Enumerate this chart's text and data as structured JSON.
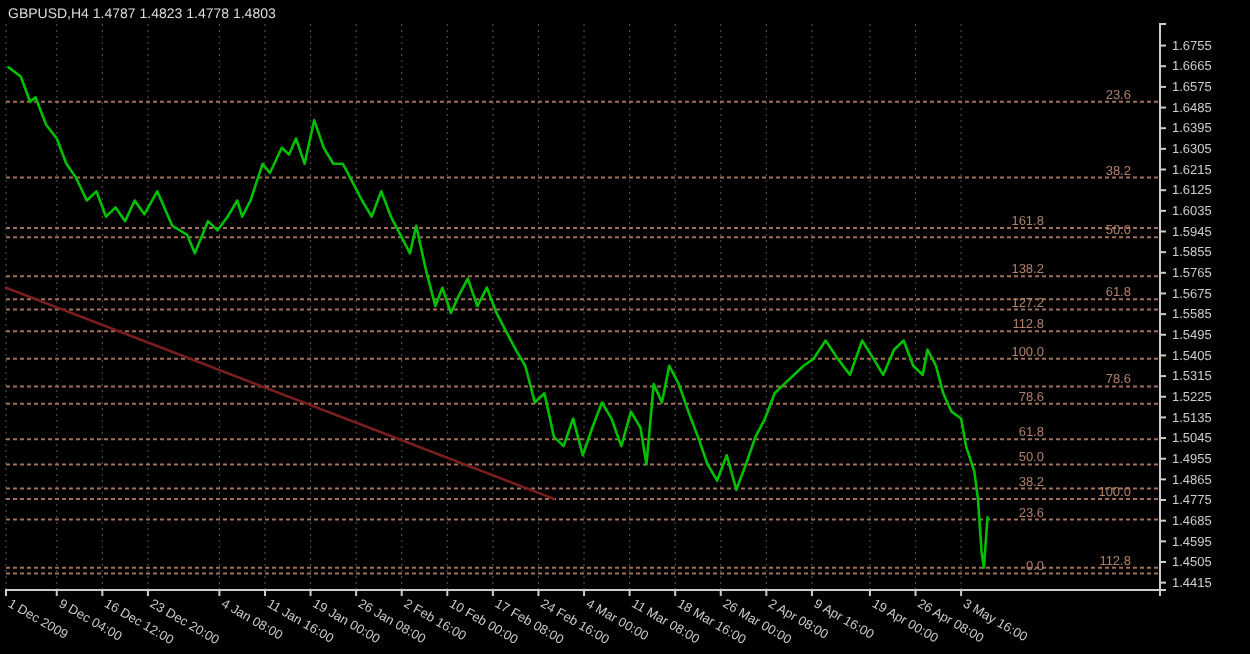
{
  "chart_data": {
    "type": "line",
    "title": "GBPUSD,H4  1.4787 1.4823 1.4778 1.4803",
    "xlim": [
      "2009-12-01T00:00",
      "2010-06-04T16:00"
    ],
    "xticks": [
      {
        "value": "2009-12-01T00:00",
        "label": "1 Dec 2009"
      },
      {
        "value": "2009-12-09T04:00",
        "label": "9 Dec 04:00"
      },
      {
        "value": "2009-12-16T12:00",
        "label": "16 Dec 12:00"
      },
      {
        "value": "2009-12-23T20:00",
        "label": "23 Dec 20:00"
      },
      {
        "value": "2010-01-04T08:00",
        "label": "4 Jan 08:00"
      },
      {
        "value": "2010-01-11T16:00",
        "label": "11 Jan 16:00"
      },
      {
        "value": "2010-01-19T00:00",
        "label": "19 Jan 00:00"
      },
      {
        "value": "2010-01-26T08:00",
        "label": "26 Jan 08:00"
      },
      {
        "value": "2010-02-02T16:00",
        "label": "2 Feb 16:00"
      },
      {
        "value": "2010-02-10T00:00",
        "label": "10 Feb 00:00"
      },
      {
        "value": "2010-02-17T08:00",
        "label": "17 Feb 08:00"
      },
      {
        "value": "2010-02-24T16:00",
        "label": "24 Feb 16:00"
      },
      {
        "value": "2010-03-04T00:00",
        "label": "4 Mar 00:00"
      },
      {
        "value": "2010-03-11T08:00",
        "label": "11 Mar 08:00"
      },
      {
        "value": "2010-03-18T16:00",
        "label": "18 Mar 16:00"
      },
      {
        "value": "2010-03-26T00:00",
        "label": "26 Mar 00:00"
      },
      {
        "value": "2010-04-02T08:00",
        "label": "2 Apr 08:00"
      },
      {
        "value": "2010-04-09T16:00",
        "label": "9 Apr 16:00"
      },
      {
        "value": "2010-04-19T00:00",
        "label": "19 Apr 00:00"
      },
      {
        "value": "2010-04-26T08:00",
        "label": "26 Apr 08:00"
      },
      {
        "value": "2010-05-03T16:00",
        "label": "3 May 16:00"
      }
    ],
    "ylim": [
      1.4383,
      1.6849
    ],
    "yticks": [
      1.6755,
      1.6665,
      1.6575,
      1.6485,
      1.6395,
      1.6305,
      1.6215,
      1.6125,
      1.6035,
      1.5945,
      1.5855,
      1.5765,
      1.5675,
      1.5585,
      1.5495,
      1.5405,
      1.5315,
      1.5225,
      1.5135,
      1.5045,
      1.4955,
      1.4865,
      1.4775,
      1.4685,
      1.4595,
      1.4505,
      1.4415
    ],
    "grid": "x",
    "series": [
      {
        "color": "#00c000",
        "x": [
          "2009-12-01T10:00",
          "2009-12-03T09:00",
          "2009-12-04T21:00",
          "2009-12-05T18:00",
          "2009-12-07T11:00",
          "2009-12-09T04:00",
          "2009-12-10T17:00",
          "2009-12-12T06:00",
          "2009-12-14T00:00",
          "2009-12-15T13:00",
          "2009-12-17T02:00",
          "2009-12-18T15:00",
          "2009-12-20T04:00",
          "2009-12-21T17:00",
          "2009-12-23T06:00",
          "2009-12-25T08:00",
          "2009-12-27T18:00",
          "2009-12-30T04:00",
          "2009-12-31T09:00",
          "2010-01-02T12:00",
          "2010-01-04T01:00",
          "2010-01-05T16:00",
          "2010-01-07T05:00",
          "2010-01-08T00:00",
          "2010-01-09T08:00",
          "2010-01-11T07:00",
          "2010-01-12T11:00",
          "2010-01-14T09:00",
          "2010-01-15T13:00",
          "2010-01-16T16:00",
          "2010-01-18T01:00",
          "2010-01-19T14:00",
          "2010-01-21T03:00",
          "2010-01-22T16:00",
          "2010-01-24T05:00",
          "2010-01-25T18:00",
          "2010-01-27T07:00",
          "2010-01-28T20:00",
          "2010-01-30T09:00",
          "2010-01-31T22:00",
          "2010-02-02T11:00",
          "2010-02-04T00:00",
          "2010-02-05T00:00",
          "2010-02-06T13:00",
          "2010-02-08T02:00",
          "2010-02-09T05:00",
          "2010-02-10T14:00",
          "2010-02-11T18:00",
          "2010-02-13T07:00",
          "2010-02-14T20:00",
          "2010-02-16T09:00",
          "2010-02-17T22:00",
          "2010-02-19T11:00",
          "2010-02-21T00:00",
          "2010-02-22T13:00",
          "2010-02-24T02:00",
          "2010-02-25T15:00",
          "2010-02-27T04:00",
          "2010-02-28T17:00",
          "2010-03-02T06:00",
          "2010-03-03T19:00",
          "2010-03-05T08:00",
          "2010-03-06T21:00",
          "2010-03-08T10:00",
          "2010-03-10T00:00",
          "2010-03-11T13:00",
          "2010-03-13T02:00",
          "2010-03-14T01:00",
          "2010-03-15T05:00",
          "2010-03-16T13:00",
          "2010-03-17T17:00",
          "2010-03-19T06:00",
          "2010-03-20T19:00",
          "2010-03-22T08:00",
          "2010-03-23T21:00",
          "2010-03-25T10:00",
          "2010-03-26T23:00",
          "2010-03-28T12:00",
          "2010-03-30T01:00",
          "2010-03-31T14:00",
          "2010-04-02T03:00",
          "2010-04-03T16:00",
          "2010-04-05T05:00",
          "2010-04-06T18:00",
          "2010-04-08T08:00",
          "2010-04-09T22:00",
          "2010-04-11T21:00",
          "2010-04-13T20:00",
          "2010-04-15T19:00",
          "2010-04-17T18:00",
          "2010-04-19T14:00",
          "2010-04-21T03:00",
          "2010-04-22T21:00",
          "2010-04-24T10:00",
          "2010-04-25T23:00",
          "2010-04-27T12:00",
          "2010-04-28T06:00",
          "2010-04-29T15:00",
          "2010-04-30T19:00",
          "2010-05-02T03:00",
          "2010-05-03T16:00",
          "2010-05-04T11:00",
          "2010-05-05T19:00",
          "2010-05-06T09:00",
          "2010-05-06T23:00",
          "2010-05-07T08:00",
          "2010-05-07T22:00"
        ],
        "values": [
          1.666,
          1.662,
          1.651,
          1.653,
          1.641,
          1.635,
          1.624,
          1.618,
          1.608,
          1.612,
          1.601,
          1.605,
          1.599,
          1.608,
          1.602,
          1.612,
          1.597,
          1.593,
          1.585,
          1.599,
          1.595,
          1.601,
          1.608,
          1.601,
          1.608,
          1.624,
          1.62,
          1.631,
          1.628,
          1.635,
          1.624,
          1.643,
          1.631,
          1.624,
          1.624,
          1.616,
          1.608,
          1.601,
          1.612,
          1.601,
          1.593,
          1.585,
          1.597,
          1.578,
          1.562,
          1.57,
          1.559,
          1.566,
          1.574,
          1.562,
          1.57,
          1.559,
          1.551,
          1.543,
          1.536,
          1.52,
          1.524,
          1.505,
          1.501,
          1.513,
          1.497,
          1.509,
          1.52,
          1.513,
          1.501,
          1.516,
          1.509,
          1.493,
          1.528,
          1.52,
          1.536,
          1.528,
          1.516,
          1.505,
          1.493,
          1.486,
          1.497,
          1.482,
          1.493,
          1.505,
          1.513,
          1.524,
          1.528,
          1.532,
          1.536,
          1.539,
          1.547,
          1.539,
          1.532,
          1.547,
          1.539,
          1.532,
          1.543,
          1.547,
          1.536,
          1.532,
          1.543,
          1.536,
          1.524,
          1.516,
          1.513,
          1.501,
          1.49,
          1.478,
          1.455,
          1.448,
          1.47
        ]
      },
      {
        "color": "#7a1f1f",
        "x": [
          "2009-12-01T00:00",
          "2010-02-27T04:00"
        ],
        "values": [
          1.57,
          1.478
        ]
      }
    ],
    "ref_lines": [
      {
        "axis": "y",
        "value": 1.651,
        "color": "#a0705a",
        "line_style": "dotted"
      },
      {
        "axis": "y",
        "value": 1.618,
        "color": "#a0705a",
        "line_style": "dotted"
      },
      {
        "axis": "y",
        "value": 1.592,
        "color": "#a0705a",
        "line_style": "dotted"
      },
      {
        "axis": "y",
        "value": 1.565,
        "color": "#a0705a",
        "line_style": "dotted"
      },
      {
        "axis": "y",
        "value": 1.527,
        "color": "#a0705a",
        "line_style": "dotted"
      },
      {
        "axis": "y",
        "value": 1.478,
        "color": "#a0705a",
        "line_style": "dotted"
      },
      {
        "axis": "y",
        "value": 1.448,
        "color": "#a0705a",
        "line_style": "dotted"
      },
      {
        "axis": "y",
        "value": 1.596,
        "color": "#a0705a",
        "line_style": "dotted"
      },
      {
        "axis": "y",
        "value": 1.575,
        "color": "#a0705a",
        "line_style": "dotted"
      },
      {
        "axis": "y",
        "value": 1.5605,
        "color": "#a0705a",
        "line_style": "dotted"
      },
      {
        "axis": "y",
        "value": 1.551,
        "color": "#a0705a",
        "line_style": "dotted"
      },
      {
        "axis": "y",
        "value": 1.539,
        "color": "#a0705a",
        "line_style": "dotted"
      },
      {
        "axis": "y",
        "value": 1.5195,
        "color": "#a0705a",
        "line_style": "dotted"
      },
      {
        "axis": "y",
        "value": 1.504,
        "color": "#a0705a",
        "line_style": "dotted"
      },
      {
        "axis": "y",
        "value": 1.493,
        "color": "#a0705a",
        "line_style": "dotted"
      },
      {
        "axis": "y",
        "value": 1.4825,
        "color": "#a0705a",
        "line_style": "dotted"
      },
      {
        "axis": "y",
        "value": 1.469,
        "color": "#a0705a",
        "line_style": "dotted"
      },
      {
        "axis": "y",
        "value": 1.4455,
        "color": "#a0705a",
        "line_style": "dotted"
      }
    ],
    "annotations": [
      {
        "text": "23.6",
        "x": "2010-05-31T00:00",
        "y": 1.651
      },
      {
        "text": "38.2",
        "x": "2010-05-31T00:00",
        "y": 1.618
      },
      {
        "text": "50.0",
        "x": "2010-05-31T00:00",
        "y": 1.592
      },
      {
        "text": "61.8",
        "x": "2010-05-31T00:00",
        "y": 1.565
      },
      {
        "text": "78.6",
        "x": "2010-05-31T00:00",
        "y": 1.527
      },
      {
        "text": "100.0",
        "x": "2010-05-31T00:00",
        "y": 1.478
      },
      {
        "text": "112.8",
        "x": "2010-05-31T00:00",
        "y": 1.448
      },
      {
        "text": "161.8",
        "x": "2010-05-17T00:00",
        "y": 1.596
      },
      {
        "text": "138.2",
        "x": "2010-05-17T00:00",
        "y": 1.575
      },
      {
        "text": "127.2",
        "x": "2010-05-17T00:00",
        "y": 1.5605
      },
      {
        "text": "112.8",
        "x": "2010-05-17T00:00",
        "y": 1.551
      },
      {
        "text": "100.0",
        "x": "2010-05-17T00:00",
        "y": 1.539
      },
      {
        "text": "78.6",
        "x": "2010-05-17T00:00",
        "y": 1.5195
      },
      {
        "text": "61.8",
        "x": "2010-05-17T00:00",
        "y": 1.504
      },
      {
        "text": "50.0",
        "x": "2010-05-17T00:00",
        "y": 1.493
      },
      {
        "text": "38.2",
        "x": "2010-05-17T00:00",
        "y": 1.4825
      },
      {
        "text": "23.6",
        "x": "2010-05-17T00:00",
        "y": 1.469
      },
      {
        "text": "0.0",
        "x": "2010-05-17T00:00",
        "y": 1.4455
      }
    ]
  }
}
